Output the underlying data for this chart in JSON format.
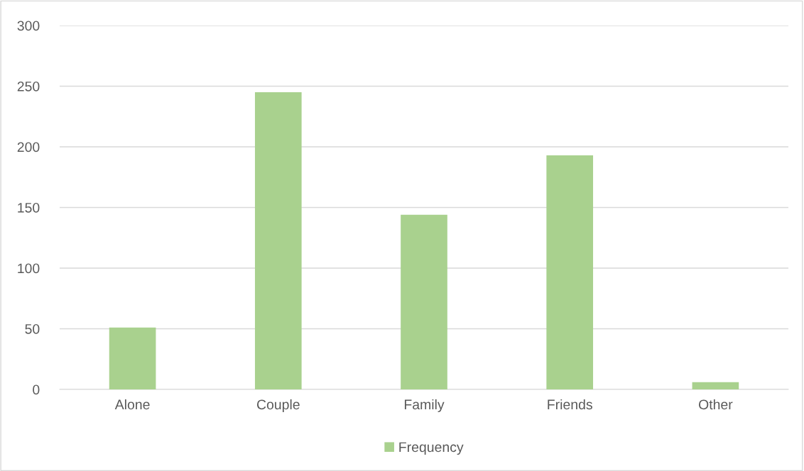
{
  "chart_data": {
    "type": "bar",
    "categories": [
      "Alone",
      "Couple",
      "Family",
      "Friends",
      "Other"
    ],
    "series": [
      {
        "name": "Frequency",
        "color": "#a9d18e",
        "values": [
          51,
          245,
          144,
          193,
          6
        ]
      }
    ],
    "ylim": [
      0,
      300
    ],
    "yticks": [
      0,
      50,
      100,
      150,
      200,
      250,
      300
    ],
    "grid": "y",
    "legend": "bottom"
  }
}
